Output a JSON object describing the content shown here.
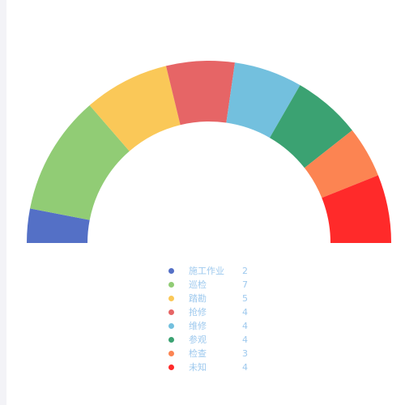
{
  "chart_data": {
    "type": "pie",
    "variant": "half-donut",
    "categories": [
      "施工作业",
      "巡检",
      "踏勘",
      "抢修",
      "维修",
      "参观",
      "检查",
      "未知"
    ],
    "values": [
      2,
      7,
      5,
      4,
      4,
      4,
      3,
      4
    ],
    "colors": [
      "#5470c6",
      "#91cc75",
      "#fac858",
      "#e66566",
      "#73c0de",
      "#3ba272",
      "#fc8452",
      "#ff2a2a"
    ],
    "legend_placement": "bottom-center",
    "legend_text_color": "#9ec9ee"
  }
}
